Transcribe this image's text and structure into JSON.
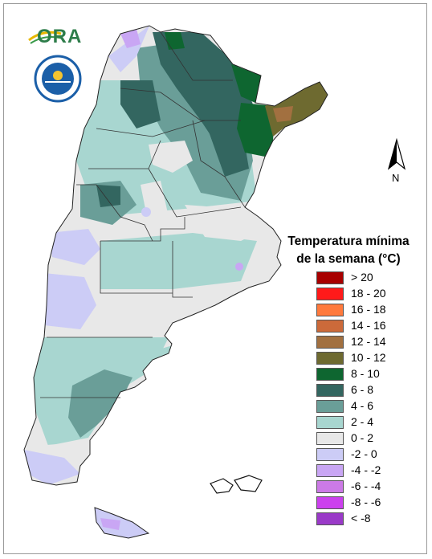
{
  "map": {
    "title_line1": "Temperatura mínima",
    "title_line2": "de la semana (°C)",
    "north_label": "N",
    "logo_text": "ORA",
    "legend": [
      {
        "label": "> 20",
        "color": "#a80000"
      },
      {
        "label": "18 - 20",
        "color": "#ff1a1a"
      },
      {
        "label": "16 - 18",
        "color": "#ff7a3d"
      },
      {
        "label": "14 - 16",
        "color": "#cc6a3a"
      },
      {
        "label": "12 - 14",
        "color": "#a27040"
      },
      {
        "label": "10 - 12",
        "color": "#6e6a30"
      },
      {
        "label": "8 - 10",
        "color": "#0e6630"
      },
      {
        "label": "6 - 8",
        "color": "#336660"
      },
      {
        "label": "4 - 6",
        "color": "#6a9e98"
      },
      {
        "label": "2 - 4",
        "color": "#a8d6d0"
      },
      {
        "label": "0 - 2",
        "color": "#e8e8e8"
      },
      {
        "label": "-2 - 0",
        "color": "#ccccf6"
      },
      {
        "label": "-4 - -2",
        "color": "#c9a6f4"
      },
      {
        "label": "-6 - -4",
        "color": "#cc7ae6"
      },
      {
        "label": "-8 - -6",
        "color": "#cc40ee"
      },
      {
        "label": "< -8",
        "color": "#9a3ac8"
      }
    ]
  }
}
